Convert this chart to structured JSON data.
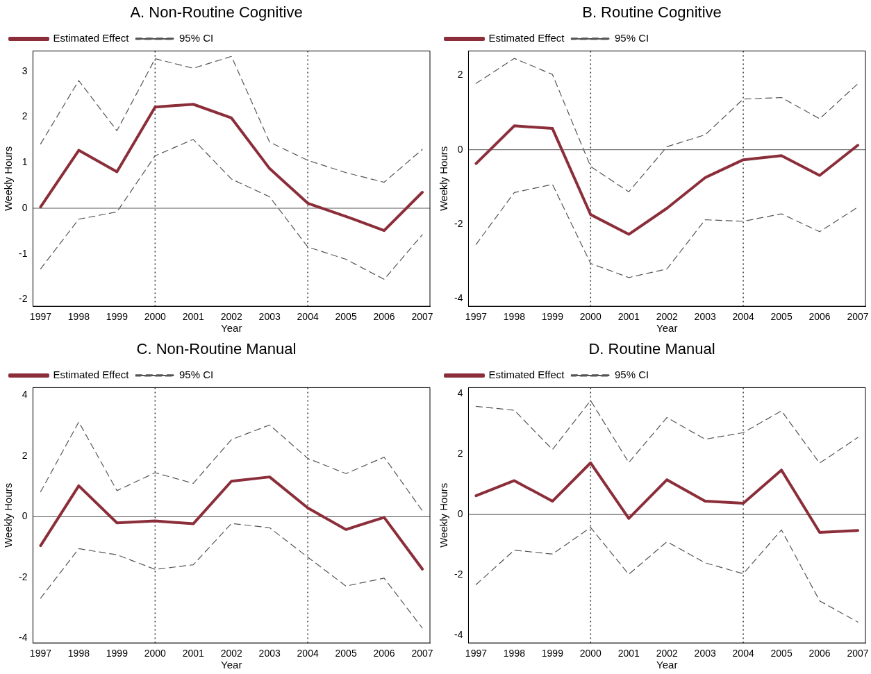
{
  "chart_data": [
    {
      "type": "line",
      "title": "A. Non-Routine Cognitive",
      "xlabel": "Year",
      "ylabel": "Weekly Hours",
      "x": [
        1997,
        1998,
        1999,
        2000,
        2001,
        2002,
        2003,
        2004,
        2005,
        2006,
        2007
      ],
      "xlim": [
        1996.8,
        2007.2
      ],
      "xticks": [
        1997,
        1998,
        1999,
        2000,
        2001,
        2002,
        2003,
        2004,
        2005,
        2006,
        2007
      ],
      "ylim": [
        -2.15,
        3.45
      ],
      "yticks": [
        -2,
        -1,
        0,
        1,
        2,
        3
      ],
      "grid": false,
      "legend": "top left",
      "marker": "none",
      "series": [
        {
          "name": "Estimated Effect",
          "color": "#8b2e3a",
          "line_style": "solid",
          "values": [
            0.03,
            1.27,
            0.8,
            2.22,
            2.28,
            1.98,
            0.87,
            0.11,
            -0.18,
            -0.49,
            0.35
          ]
        },
        {
          "name": "95% CI",
          "color": "#555555",
          "line_style": "dashed",
          "values": [
            1.41,
            2.8,
            1.7,
            3.28,
            3.07,
            3.33,
            1.45,
            1.05,
            0.78,
            0.57,
            1.29
          ]
        },
        {
          "color": "#555555",
          "line_style": "dashed",
          "values": [
            -1.33,
            -0.24,
            -0.08,
            1.15,
            1.51,
            0.64,
            0.25,
            -0.85,
            -1.12,
            -1.56,
            -0.58
          ]
        }
      ],
      "ref_lines": [
        {
          "axis": "y",
          "value": 0,
          "color": "#555555",
          "line_style": "solid"
        },
        {
          "axis": "x",
          "value": 2000,
          "color": "#333333",
          "line_style": "dotted"
        },
        {
          "axis": "x",
          "value": 2004,
          "color": "#333333",
          "line_style": "dotted"
        }
      ]
    },
    {
      "type": "line",
      "title": "B. Routine Cognitive",
      "xlabel": "Year",
      "ylabel": "Weekly Hours",
      "x": [
        1997,
        1998,
        1999,
        2000,
        2001,
        2002,
        2003,
        2004,
        2005,
        2006,
        2007
      ],
      "xlim": [
        1996.8,
        2007.2
      ],
      "xticks": [
        1997,
        1998,
        1999,
        2000,
        2001,
        2002,
        2003,
        2004,
        2005,
        2006,
        2007
      ],
      "ylim": [
        -4.2,
        2.65
      ],
      "yticks": [
        -4,
        -2,
        0,
        2
      ],
      "grid": false,
      "legend": "top left",
      "marker": "none",
      "series": [
        {
          "name": "Estimated Effect",
          "color": "#8b2e3a",
          "line_style": "solid",
          "values": [
            -0.37,
            0.64,
            0.57,
            -1.74,
            -2.27,
            -1.57,
            -0.75,
            -0.27,
            -0.16,
            -0.69,
            0.12
          ]
        },
        {
          "name": "95% CI",
          "color": "#555555",
          "line_style": "dashed",
          "values": [
            1.78,
            2.45,
            2.02,
            -0.45,
            -1.13,
            0.08,
            0.4,
            1.36,
            1.4,
            0.83,
            1.77
          ]
        },
        {
          "color": "#555555",
          "line_style": "dashed",
          "values": [
            -2.54,
            -1.15,
            -0.93,
            -3.05,
            -3.43,
            -3.2,
            -1.88,
            -1.92,
            -1.72,
            -2.2,
            -1.54
          ]
        }
      ],
      "ref_lines": [
        {
          "axis": "y",
          "value": 0,
          "color": "#555555",
          "line_style": "solid"
        },
        {
          "axis": "x",
          "value": 2000,
          "color": "#333333",
          "line_style": "dotted"
        },
        {
          "axis": "x",
          "value": 2004,
          "color": "#333333",
          "line_style": "dotted"
        }
      ]
    },
    {
      "type": "line",
      "title": "C. Non-Routine Manual",
      "xlabel": "Year",
      "ylabel": "Weekly Hours",
      "x": [
        1997,
        1998,
        1999,
        2000,
        2001,
        2002,
        2003,
        2004,
        2005,
        2006,
        2007
      ],
      "xlim": [
        1996.8,
        2007.2
      ],
      "xticks": [
        1997,
        1998,
        1999,
        2000,
        2001,
        2002,
        2003,
        2004,
        2005,
        2006,
        2007
      ],
      "ylim": [
        -4.15,
        4.25
      ],
      "yticks": [
        -4,
        -2,
        0,
        2,
        4
      ],
      "grid": false,
      "legend": "top left",
      "marker": "none",
      "series": [
        {
          "name": "Estimated Effect",
          "color": "#8b2e3a",
          "line_style": "solid",
          "values": [
            -0.95,
            1.02,
            -0.2,
            -0.14,
            -0.23,
            1.17,
            1.31,
            0.29,
            -0.42,
            -0.02,
            -1.72
          ]
        },
        {
          "name": "95% CI",
          "color": "#555555",
          "line_style": "dashed",
          "values": [
            0.82,
            3.12,
            0.86,
            1.45,
            1.1,
            2.54,
            3.02,
            1.92,
            1.42,
            1.96,
            0.2
          ]
        },
        {
          "color": "#555555",
          "line_style": "dashed",
          "values": [
            -2.68,
            -1.05,
            -1.25,
            -1.73,
            -1.58,
            -0.22,
            -0.36,
            -1.33,
            -2.28,
            -2.02,
            -3.66
          ]
        }
      ],
      "ref_lines": [
        {
          "axis": "y",
          "value": 0,
          "color": "#555555",
          "line_style": "solid"
        },
        {
          "axis": "x",
          "value": 2000,
          "color": "#333333",
          "line_style": "dotted"
        },
        {
          "axis": "x",
          "value": 2004,
          "color": "#333333",
          "line_style": "dotted"
        }
      ]
    },
    {
      "type": "line",
      "title": "D. Routine Manual",
      "xlabel": "Year",
      "ylabel": "Weekly Hours",
      "x": [
        1997,
        1998,
        1999,
        2000,
        2001,
        2002,
        2003,
        2004,
        2005,
        2006,
        2007
      ],
      "xlim": [
        1996.8,
        2007.2
      ],
      "xticks": [
        1997,
        1998,
        1999,
        2000,
        2001,
        2002,
        2003,
        2004,
        2005,
        2006,
        2007
      ],
      "ylim": [
        -4.25,
        4.2
      ],
      "yticks": [
        -4,
        -2,
        0,
        2,
        4
      ],
      "grid": false,
      "legend": "top left",
      "marker": "none",
      "series": [
        {
          "name": "Estimated Effect",
          "color": "#8b2e3a",
          "line_style": "solid",
          "values": [
            0.62,
            1.12,
            0.44,
            1.71,
            -0.13,
            1.15,
            0.44,
            0.37,
            1.47,
            -0.59,
            -0.53
          ]
        },
        {
          "name": "95% CI",
          "color": "#555555",
          "line_style": "dashed",
          "values": [
            3.58,
            3.45,
            2.15,
            3.77,
            1.72,
            3.21,
            2.49,
            2.71,
            3.43,
            1.7,
            2.55
          ]
        },
        {
          "color": "#555555",
          "line_style": "dashed",
          "values": [
            -2.32,
            -1.18,
            -1.31,
            -0.43,
            -1.98,
            -0.9,
            -1.6,
            -1.96,
            -0.51,
            -2.86,
            -3.56
          ]
        }
      ],
      "ref_lines": [
        {
          "axis": "y",
          "value": 0,
          "color": "#555555",
          "line_style": "solid"
        },
        {
          "axis": "x",
          "value": 2000,
          "color": "#333333",
          "line_style": "dotted"
        },
        {
          "axis": "x",
          "value": 2004,
          "color": "#333333",
          "line_style": "dotted"
        }
      ]
    }
  ]
}
